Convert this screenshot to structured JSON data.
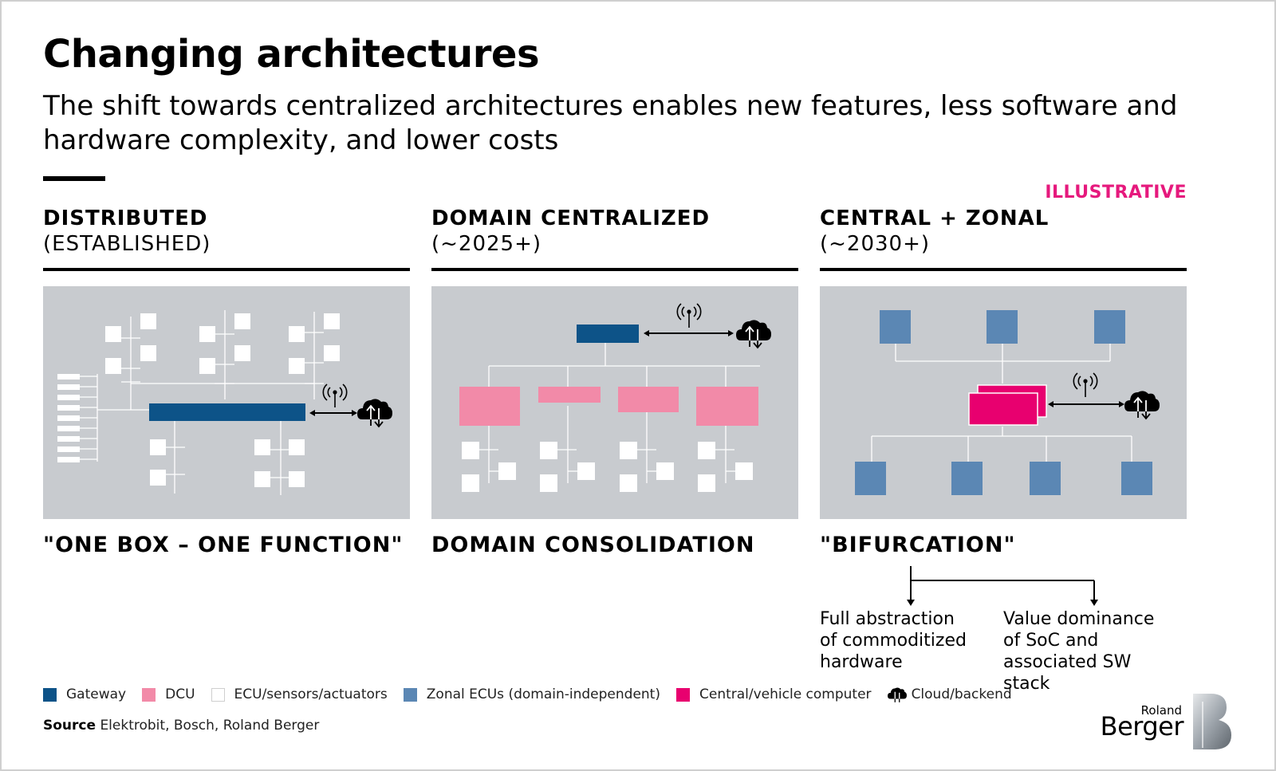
{
  "title": "Changing architectures",
  "subtitle": "The shift towards centralized architectures enables new features, less software and hardware complexity, and lower costs",
  "tag": "ILLUSTRATIVE",
  "columns": [
    {
      "heading": "DISTRIBUTED",
      "subheading": "(ESTABLISHED)",
      "footer": "\"ONE BOX – ONE FUNCTION\""
    },
    {
      "heading": "DOMAIN CENTRALIZED",
      "subheading": "(~2025+)",
      "footer": "DOMAIN CONSOLIDATION"
    },
    {
      "heading": "CENTRAL + ZONAL",
      "subheading": "(~2030+)",
      "footer": "\"BIFURCATION\""
    }
  ],
  "bifurcation": {
    "left": "Full abstraction of commoditized hardware",
    "right": "Value dominance of SoC and associated SW stack"
  },
  "legend": [
    {
      "label": "Gateway",
      "color": "#0d5388"
    },
    {
      "label": "DCU",
      "color": "#f28aa8"
    },
    {
      "label": "ECU/sensors/actuators",
      "color": "#ffffff"
    },
    {
      "label": "Zonal ECUs (domain-independent)",
      "color": "#5b87b4"
    },
    {
      "label": "Central/vehicle computer",
      "color": "#e8006f"
    },
    {
      "label": "Cloud/backend",
      "icon": "cloud-icon"
    }
  ],
  "source": {
    "label": "Source",
    "text": "Elektrobit, Bosch, Roland Berger"
  },
  "logo": {
    "line1": "Roland",
    "line2": "Berger"
  },
  "colors": {
    "accent": "#e6197d",
    "panel": "#c8cbcf",
    "gateway": "#0d5388",
    "dcu": "#f28aa8",
    "zonal": "#5b87b4",
    "central": "#e8006f"
  }
}
